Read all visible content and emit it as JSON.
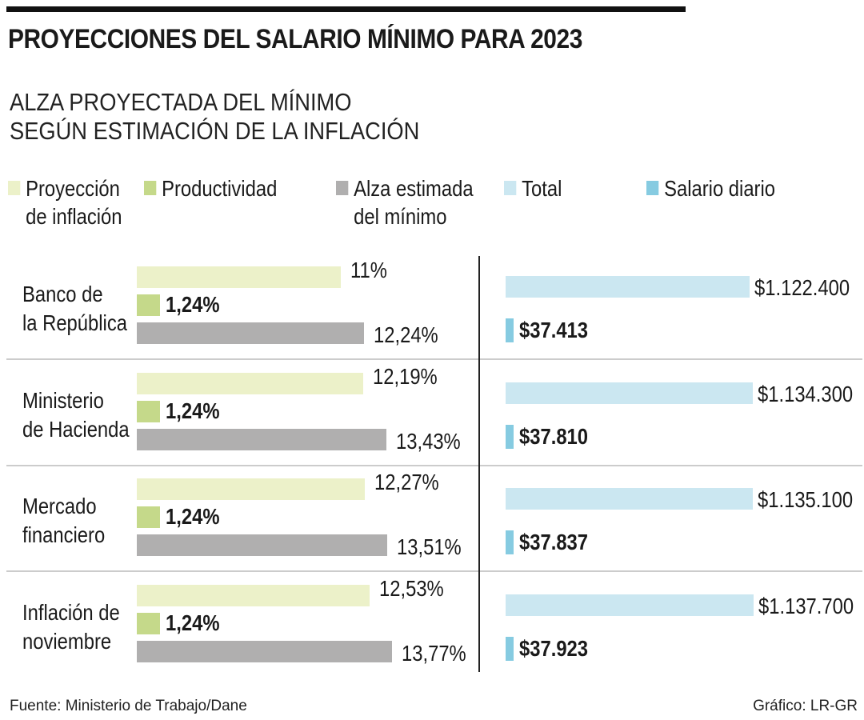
{
  "title": "PROYECCIONES DEL SALARIO MÍNIMO PARA 2023",
  "subtitle": [
    "ALZA PROYECTADA DEL MÍNIMO",
    "SEGÚN ESTIMACIÓN DE LA INFLACIÓN"
  ],
  "legend": [
    {
      "label": "Proyección de inflación",
      "color": "#ecf1c9"
    },
    {
      "label": "Productividad",
      "color": "#c5d98a"
    },
    {
      "label": "Alza estimada del mínimo",
      "color": "#b0afaf"
    },
    {
      "label": "Total",
      "color": "#cbe7f1"
    },
    {
      "label": "Salario diario",
      "color": "#86cbe1"
    }
  ],
  "footer": {
    "source": "Fuente: Ministerio de Trabajo/Dane",
    "credit": "Gráfico: LR-GR"
  },
  "chart_data": {
    "type": "bar",
    "categories": [
      "Banco de la República",
      "Ministerio de Hacienda",
      "Mercado financiero",
      "Inflación de noviembre"
    ],
    "category_lines": [
      [
        "Banco de",
        "la República"
      ],
      [
        "Ministerio",
        "de Hacienda"
      ],
      [
        "Mercado",
        "financiero"
      ],
      [
        "Inflación de",
        "noviembre"
      ]
    ],
    "series": [
      {
        "name": "Proyección de inflación",
        "values": [
          11,
          12.19,
          12.27,
          12.53
        ],
        "labels": [
          "11%",
          "12,19%",
          "12,27%",
          "12,53%"
        ]
      },
      {
        "name": "Productividad",
        "values": [
          1.24,
          1.24,
          1.24,
          1.24
        ],
        "labels": [
          "1,24%",
          "1,24%",
          "1,24%",
          "1,24%"
        ]
      },
      {
        "name": "Alza estimada del mínimo",
        "values": [
          12.24,
          13.43,
          13.51,
          13.77
        ],
        "labels": [
          "12,24%",
          "13,43%",
          "13,51%",
          "13,77%"
        ]
      },
      {
        "name": "Total",
        "values": [
          1122400,
          1134300,
          1135100,
          1137700
        ],
        "labels": [
          "$1.122.400",
          "$1.134.300",
          "$1.135.100",
          "$1.137.700"
        ]
      },
      {
        "name": "Salario diario",
        "values": [
          37413,
          37810,
          37837,
          37923
        ],
        "labels": [
          "$37.413",
          "$37.810",
          "$37.837",
          "$37.923"
        ]
      }
    ]
  }
}
